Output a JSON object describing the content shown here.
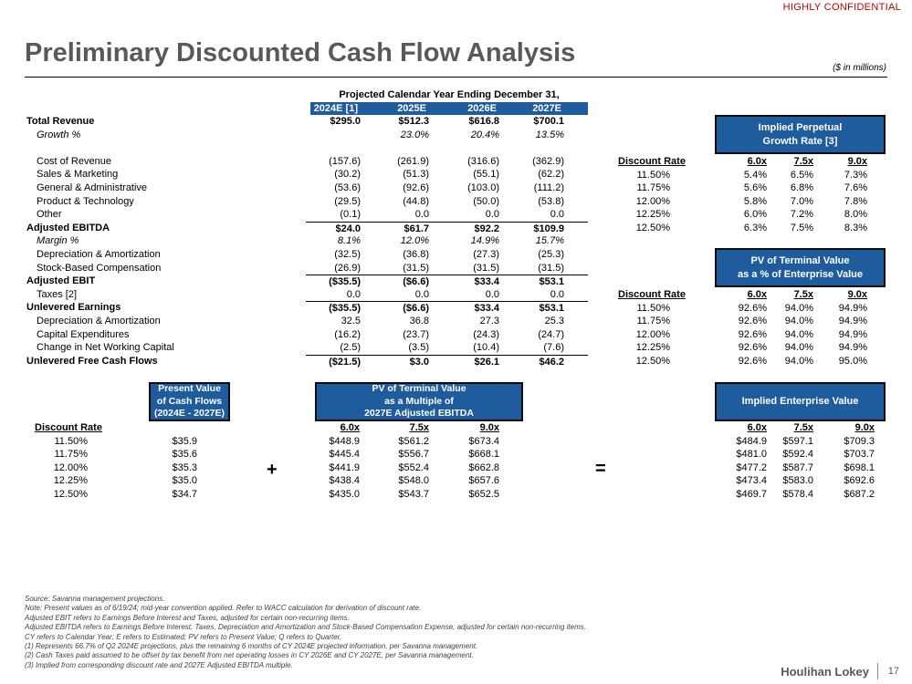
{
  "confidential": "HIGHLY CONFIDENTIAL",
  "title": "Preliminary Discounted Cash Flow Analysis",
  "units": "($ in millions)",
  "projection": {
    "header": "Projected Calendar Year Ending December 31,",
    "years": [
      "2024E [1]",
      "2025E",
      "2026E",
      "2027E"
    ],
    "rows": [
      {
        "label": "Total Revenue",
        "values": [
          "$295.0",
          "$512.3",
          "$616.8",
          "$700.1"
        ],
        "style": "bold"
      },
      {
        "label": "Growth %",
        "values": [
          "",
          "23.0%",
          "20.4%",
          "13.5%"
        ],
        "style": "italic"
      },
      {
        "label": "",
        "values": [
          "",
          "",
          "",
          ""
        ],
        "style": "blank"
      },
      {
        "label": "Cost of Revenue",
        "values": [
          "(157.6)",
          "(261.9)",
          "(316.6)",
          "(362.9)"
        ],
        "style": "indent"
      },
      {
        "label": "Sales & Marketing",
        "values": [
          "(30.2)",
          "(51.3)",
          "(55.1)",
          "(62.2)"
        ],
        "style": "indent"
      },
      {
        "label": "General & Administrative",
        "values": [
          "(53.6)",
          "(92.6)",
          "(103.0)",
          "(111.2)"
        ],
        "style": "indent"
      },
      {
        "label": "Product & Technology",
        "values": [
          "(29.5)",
          "(44.8)",
          "(50.0)",
          "(53.8)"
        ],
        "style": "indent"
      },
      {
        "label": "Other",
        "values": [
          "(0.1)",
          "0.0",
          "0.0",
          "0.0"
        ],
        "style": "indent"
      },
      {
        "label": "Adjusted EBITDA",
        "values": [
          "$24.0",
          "$61.7",
          "$92.2",
          "$109.9"
        ],
        "style": "bold-total"
      },
      {
        "label": "Margin %",
        "values": [
          "8.1%",
          "12.0%",
          "14.9%",
          "15.7%"
        ],
        "style": "italic"
      },
      {
        "label": "Depreciation & Amortization",
        "values": [
          "(32.5)",
          "(36.8)",
          "(27.3)",
          "(25.3)"
        ],
        "style": "indent"
      },
      {
        "label": "Stock-Based Compensation",
        "values": [
          "(26.9)",
          "(31.5)",
          "(31.5)",
          "(31.5)"
        ],
        "style": "indent"
      },
      {
        "label": "Adjusted EBIT",
        "values": [
          "($35.5)",
          "($6.6)",
          "$33.4",
          "$53.1"
        ],
        "style": "bold-total"
      },
      {
        "label": "Taxes [2]",
        "values": [
          "0.0",
          "0.0",
          "0.0",
          "0.0"
        ],
        "style": "indent"
      },
      {
        "label": "Unlevered Earnings",
        "values": [
          "($35.5)",
          "($6.6)",
          "$33.4",
          "$53.1"
        ],
        "style": "bold-total"
      },
      {
        "label": "Depreciation & Amortization",
        "values": [
          "32.5",
          "36.8",
          "27.3",
          "25.3"
        ],
        "style": "indent"
      },
      {
        "label": "Capital Expenditures",
        "values": [
          "(16.2)",
          "(23.7)",
          "(24.3)",
          "(24.7)"
        ],
        "style": "indent"
      },
      {
        "label": "Change in Net Working Capital",
        "values": [
          "(2.5)",
          "(3.5)",
          "(10.4)",
          "(7.6)"
        ],
        "style": "indent"
      },
      {
        "label": "Unlevered Free Cash Flows",
        "values": [
          "($21.5)",
          "$3.0",
          "$26.1",
          "$46.2"
        ],
        "style": "bold-total"
      }
    ]
  },
  "growth_table": {
    "title_line1": "Implied Perpetual",
    "title_line2": "Growth Rate [3]",
    "header": "Discount Rate",
    "multiples": [
      "6.0x",
      "7.5x",
      "9.0x"
    ],
    "rows": [
      {
        "rate": "11.50%",
        "values": [
          "5.4%",
          "6.5%",
          "7.3%"
        ]
      },
      {
        "rate": "11.75%",
        "values": [
          "5.6%",
          "6.8%",
          "7.6%"
        ]
      },
      {
        "rate": "12.00%",
        "values": [
          "5.8%",
          "7.0%",
          "7.8%"
        ]
      },
      {
        "rate": "12.25%",
        "values": [
          "6.0%",
          "7.2%",
          "8.0%"
        ]
      },
      {
        "rate": "12.50%",
        "values": [
          "6.3%",
          "7.5%",
          "8.3%"
        ]
      }
    ]
  },
  "tv_pct_table": {
    "title_line1": "PV of Terminal Value",
    "title_line2": "as a % of Enterprise Value",
    "header": "Discount Rate",
    "multiples": [
      "6.0x",
      "7.5x",
      "9.0x"
    ],
    "rows": [
      {
        "rate": "11.50%",
        "values": [
          "92.6%",
          "94.0%",
          "94.9%"
        ]
      },
      {
        "rate": "11.75%",
        "values": [
          "92.6%",
          "94.0%",
          "94.9%"
        ]
      },
      {
        "rate": "12.00%",
        "values": [
          "92.6%",
          "94.0%",
          "94.9%"
        ]
      },
      {
        "rate": "12.25%",
        "values": [
          "92.6%",
          "94.0%",
          "94.9%"
        ]
      },
      {
        "rate": "12.50%",
        "values": [
          "92.6%",
          "94.0%",
          "95.0%"
        ]
      }
    ]
  },
  "bottom": {
    "pv_box": [
      "Present Value",
      "of Cash Flows",
      "(2024E - 2027E)"
    ],
    "tv_box": [
      "PV of Terminal Value",
      "as a Multiple of",
      "2027E Adjusted EBITDA"
    ],
    "ev_box": "Implied Enterprise Value",
    "header": "Discount Rate",
    "multiples": [
      "6.0x",
      "7.5x",
      "9.0x"
    ],
    "plus": "+",
    "equals": "=",
    "rows": [
      {
        "rate": "11.50%",
        "pv": "$35.9",
        "tv": [
          "$448.9",
          "$561.2",
          "$673.4"
        ],
        "ev": [
          "$484.9",
          "$597.1",
          "$709.3"
        ]
      },
      {
        "rate": "11.75%",
        "pv": "$35.6",
        "tv": [
          "$445.4",
          "$556.7",
          "$668.1"
        ],
        "ev": [
          "$481.0",
          "$592.4",
          "$703.7"
        ]
      },
      {
        "rate": "12.00%",
        "pv": "$35.3",
        "tv": [
          "$441.9",
          "$552.4",
          "$662.8"
        ],
        "ev": [
          "$477.2",
          "$587.7",
          "$698.1"
        ]
      },
      {
        "rate": "12.25%",
        "pv": "$35.0",
        "tv": [
          "$438.4",
          "$548.0",
          "$657.6"
        ],
        "ev": [
          "$473.4",
          "$583.0",
          "$692.6"
        ]
      },
      {
        "rate": "12.50%",
        "pv": "$34.7",
        "tv": [
          "$435.0",
          "$543.7",
          "$652.5"
        ],
        "ev": [
          "$469.7",
          "$578.4",
          "$687.2"
        ]
      }
    ]
  },
  "notes": [
    "Source: Savanna management projections.",
    "Note: Present values as of 6/19/24; mid-year convention applied. Refer to WACC calculation for derivation of discount rate.",
    "Adjusted EBIT refers to Earnings Before Interest and Taxes, adjusted for certain non-recurring items.",
    "Adjusted EBITDA refers to Earnings Before Interest, Taxes, Depreciation and Amortization and Stock-Based Compensation Expense, adjusted for certain non-recurring items.",
    "CY refers to Calendar Year; E refers to Estimated; PV refers to Present Value; Q refers to Quarter.",
    "(1)    Represents 66.7% of Q2 2024E projections, plus the remaining 6 months of CY 2024E projected information, per Savanna management.",
    "(2)    Cash Taxes paid assumed to be offset by tax benefit from net operating losses in CY 2026E and CY 2027E, per Savanna management.",
    "(3)    Implied from corresponding discount rate and 2027E Adjusted EBITDA multiple."
  ],
  "logo": "Houlihan Lokey",
  "page_number": "17"
}
